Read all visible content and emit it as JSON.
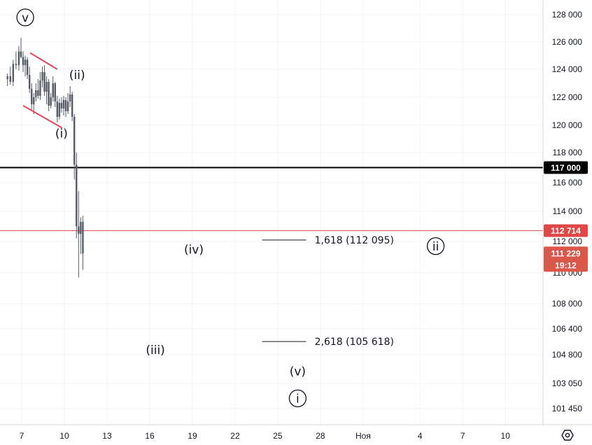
{
  "chart_data": {
    "type": "candlestick",
    "y_axis": {
      "position": "right",
      "ticks": [
        101450,
        103050,
        104800,
        106400,
        108000,
        110000,
        112000,
        114000,
        116000,
        118000,
        120000,
        122000,
        124000,
        126000,
        128000
      ],
      "tick_labels": [
        "101 450",
        "103 050",
        "104 800",
        "106 400",
        "108 000",
        "110 000",
        "112 000",
        "114 000",
        "116 000",
        "118 000",
        "120 000",
        "122 000",
        "124 000",
        "126 000",
        "128 000"
      ]
    },
    "x_axis": {
      "tick_labels": [
        "7",
        "10",
        "13",
        "16",
        "19",
        "22",
        "25",
        "28",
        "Ноя",
        "4",
        "7",
        "10"
      ]
    },
    "grid": true,
    "horizontal_levels": [
      {
        "value": 117000,
        "label": "117 000",
        "color": "#000000",
        "badge_bg": "#000000"
      },
      {
        "value": 112714,
        "label": "112 714",
        "color": "#e04848",
        "badge_bg": "#e04848"
      }
    ],
    "last_price": {
      "value": 111229,
      "label": "111 229",
      "countdown": "19:12",
      "badge_bg": "#d9584a"
    },
    "candles": [
      {
        "t": 6.0,
        "o": 123300,
        "h": 123700,
        "l": 122800,
        "c": 123500
      },
      {
        "t": 6.2,
        "o": 123500,
        "h": 124200,
        "l": 122900,
        "c": 123100
      },
      {
        "t": 6.4,
        "o": 123100,
        "h": 124700,
        "l": 122800,
        "c": 124400
      },
      {
        "t": 6.6,
        "o": 124400,
        "h": 125300,
        "l": 124000,
        "c": 124300
      },
      {
        "t": 6.8,
        "o": 124300,
        "h": 125700,
        "l": 123900,
        "c": 125300
      },
      {
        "t": 6.95,
        "o": 125300,
        "h": 126300,
        "l": 124800,
        "c": 124900
      },
      {
        "t": 7.1,
        "o": 124900,
        "h": 125300,
        "l": 123800,
        "c": 124300
      },
      {
        "t": 7.25,
        "o": 124300,
        "h": 125000,
        "l": 123500,
        "c": 124700
      },
      {
        "t": 7.4,
        "o": 124700,
        "h": 124900,
        "l": 123300,
        "c": 123600
      },
      {
        "t": 7.55,
        "o": 123600,
        "h": 124200,
        "l": 122300,
        "c": 122600
      },
      {
        "t": 7.7,
        "o": 122600,
        "h": 123000,
        "l": 121000,
        "c": 121500
      },
      {
        "t": 7.85,
        "o": 121500,
        "h": 122300,
        "l": 120800,
        "c": 122000
      },
      {
        "t": 8.0,
        "o": 122000,
        "h": 123000,
        "l": 121700,
        "c": 122500
      },
      {
        "t": 8.15,
        "o": 122500,
        "h": 123300,
        "l": 121900,
        "c": 122100
      },
      {
        "t": 8.3,
        "o": 122100,
        "h": 123800,
        "l": 121800,
        "c": 123200
      },
      {
        "t": 8.45,
        "o": 123200,
        "h": 124200,
        "l": 122700,
        "c": 123800
      },
      {
        "t": 8.6,
        "o": 123800,
        "h": 124300,
        "l": 122100,
        "c": 122400
      },
      {
        "t": 8.75,
        "o": 122400,
        "h": 123500,
        "l": 121500,
        "c": 123100
      },
      {
        "t": 8.9,
        "o": 123100,
        "h": 123300,
        "l": 121000,
        "c": 121400
      },
      {
        "t": 9.05,
        "o": 121400,
        "h": 122300,
        "l": 121200,
        "c": 122000
      },
      {
        "t": 9.2,
        "o": 122000,
        "h": 123500,
        "l": 121700,
        "c": 123000
      },
      {
        "t": 9.35,
        "o": 123000,
        "h": 123100,
        "l": 121300,
        "c": 121700
      },
      {
        "t": 9.5,
        "o": 121700,
        "h": 122100,
        "l": 120200,
        "c": 120600
      },
      {
        "t": 9.65,
        "o": 120600,
        "h": 121900,
        "l": 120400,
        "c": 121600
      },
      {
        "t": 9.8,
        "o": 121600,
        "h": 122000,
        "l": 120900,
        "c": 121200
      },
      {
        "t": 9.95,
        "o": 121200,
        "h": 122100,
        "l": 120700,
        "c": 121800
      },
      {
        "t": 10.1,
        "o": 121800,
        "h": 122000,
        "l": 120600,
        "c": 121000
      },
      {
        "t": 10.25,
        "o": 121000,
        "h": 122300,
        "l": 120800,
        "c": 121700
      },
      {
        "t": 10.4,
        "o": 121700,
        "h": 122800,
        "l": 121300,
        "c": 122200
      },
      {
        "t": 10.55,
        "o": 122200,
        "h": 122400,
        "l": 120300,
        "c": 120600
      },
      {
        "t": 10.7,
        "o": 120600,
        "h": 120800,
        "l": 116200,
        "c": 117200
      },
      {
        "t": 10.85,
        "o": 117200,
        "h": 118000,
        "l": 112200,
        "c": 113000
      },
      {
        "t": 11.0,
        "o": 113000,
        "h": 115400,
        "l": 109700,
        "c": 112500
      },
      {
        "t": 11.15,
        "o": 112500,
        "h": 113600,
        "l": 111200,
        "c": 113300
      },
      {
        "t": 11.3,
        "o": 113300,
        "h": 113700,
        "l": 110200,
        "c": 111229
      }
    ],
    "trendlines": [
      {
        "from": [
          7.6,
          125200
        ],
        "to": [
          9.5,
          124000
        ],
        "color": "#e5455a"
      },
      {
        "from": [
          7.1,
          121400
        ],
        "to": [
          9.85,
          119800
        ],
        "color": "#e5455a"
      }
    ],
    "wave_labels": [
      {
        "text": "v",
        "t": 7.25,
        "v": 127800,
        "circled": true
      },
      {
        "text": "(ii)",
        "t": 10.9,
        "v": 123600
      },
      {
        "text": "(i)",
        "t": 9.8,
        "v": 119400
      },
      {
        "text": "(iv)",
        "t": 19.1,
        "v": 111500
      },
      {
        "text": "(iii)",
        "t": 16.4,
        "v": 105100
      },
      {
        "text": "(v)",
        "t": 26.4,
        "v": 103800
      },
      {
        "text": "i",
        "t": 26.4,
        "v": 102100,
        "circled": true
      },
      {
        "text": "ii",
        "t": 36.1,
        "v": 111700,
        "circled": true
      }
    ],
    "fib_levels": [
      {
        "ratio": "1,618",
        "value": 112095,
        "label": "1,618 (112 095)",
        "from_t": 23.9,
        "to_t": 27.0
      },
      {
        "ratio": "2,618",
        "value": 105618,
        "label": "2,618 (105 618)",
        "from_t": 23.9,
        "to_t": 27.0
      }
    ]
  },
  "toolbar": {
    "settings_icon": "gear-icon"
  }
}
